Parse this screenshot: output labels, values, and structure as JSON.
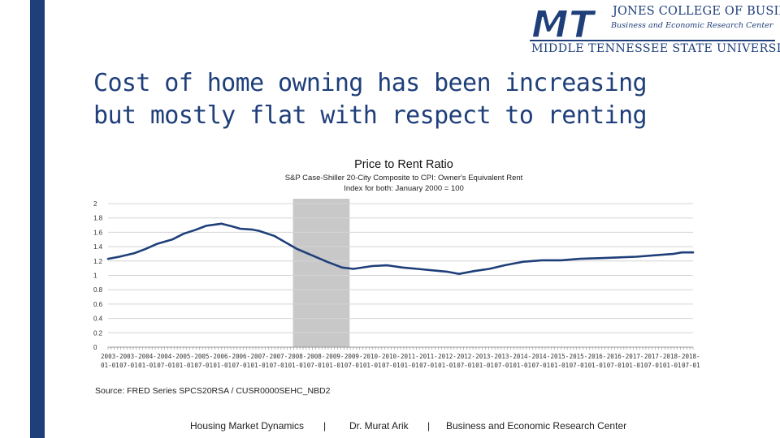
{
  "slide": {
    "title": "Cost of home owning has been increasing\nbut mostly flat with respect to renting",
    "source": "Source: FRED Series SPCS20RSA / CUSR0000SEHC_NBD2",
    "accent_color": "#1f3f7a"
  },
  "logo": {
    "mark_text": "MT",
    "line1": "JONES COLLEGE OF BUSINESS",
    "line2": "Business and Economic Research Center",
    "line3": "MIDDLE TENNESSEE STATE UNIVERSITY"
  },
  "footer": {
    "left": "Housing Market Dynamics",
    "sep1": "|",
    "middle": "Dr. Murat Arik",
    "sep2": "|",
    "right": "Business and Economic Research Center"
  },
  "chart_data": {
    "type": "line",
    "title": "Price to Rent Ratio",
    "subtitle_lines": [
      "S&P Case-Shiller 20-City Composite to CPI: Owner's Equivalent Rent",
      "Index for both: January 2000 = 100"
    ],
    "ylim": [
      0,
      2
    ],
    "yticks": [
      0,
      0.2,
      0.4,
      0.6,
      0.8,
      1,
      1.2,
      1.4,
      1.6,
      1.8,
      2
    ],
    "ytick_labels": [
      "0",
      "0.2",
      "0.4",
      "0.6",
      "0.8",
      "1",
      "1.2",
      "1.4",
      "1.6",
      "1.8",
      "2"
    ],
    "grid": true,
    "line_color": "#1f3f7a",
    "shade_color": "#c8c8c8",
    "x_start": 2003,
    "x_end": 2018.5,
    "recession": [
      2007.9,
      2009.4
    ],
    "x_tick_labels_top": [
      "2003-",
      "2003-",
      "2004-",
      "2004-",
      "2005-",
      "2005-",
      "2006-",
      "2006-",
      "2007-",
      "2007-",
      "2008-",
      "2008-",
      "2009-",
      "2009-",
      "2010-",
      "2010-",
      "2011-",
      "2011-",
      "2012-",
      "2012-",
      "2013-",
      "2013-",
      "2014-",
      "2014-",
      "2015-",
      "2015-",
      "2016-",
      "2016-",
      "2017-",
      "2017-",
      "2018-",
      "2018-"
    ],
    "x_tick_labels_bottom": [
      "01-01",
      "07-01",
      "01-01",
      "07-01",
      "01-01",
      "07-01",
      "01-01",
      "07-01",
      "01-01",
      "07-01",
      "01-01",
      "07-01",
      "01-01",
      "07-01",
      "01-01",
      "07-01",
      "01-01",
      "07-01",
      "01-01",
      "07-01",
      "01-01",
      "07-01",
      "01-01",
      "07-01",
      "01-01",
      "07-01",
      "01-01",
      "07-01",
      "01-01",
      "07-01",
      "01-01",
      "07-01"
    ],
    "series": [
      {
        "name": "Price to Rent Ratio",
        "x": [
          2003.0,
          2003.3,
          2003.7,
          2004.0,
          2004.3,
          2004.7,
          2005.0,
          2005.3,
          2005.6,
          2006.0,
          2006.3,
          2006.5,
          2006.8,
          2007.0,
          2007.4,
          2007.7,
          2008.0,
          2008.4,
          2008.8,
          2009.2,
          2009.5,
          2010.0,
          2010.4,
          2010.8,
          2011.2,
          2011.6,
          2012.0,
          2012.3,
          2012.7,
          2013.1,
          2013.5,
          2014.0,
          2014.5,
          2015.0,
          2015.5,
          2016.0,
          2016.5,
          2017.0,
          2017.5,
          2018.0,
          2018.2,
          2018.5
        ],
        "values": [
          1.23,
          1.26,
          1.31,
          1.37,
          1.44,
          1.5,
          1.58,
          1.63,
          1.69,
          1.72,
          1.68,
          1.65,
          1.64,
          1.62,
          1.55,
          1.46,
          1.37,
          1.28,
          1.19,
          1.11,
          1.09,
          1.13,
          1.14,
          1.11,
          1.09,
          1.07,
          1.05,
          1.02,
          1.06,
          1.09,
          1.14,
          1.19,
          1.21,
          1.21,
          1.23,
          1.24,
          1.25,
          1.26,
          1.28,
          1.3,
          1.32,
          1.32
        ]
      }
    ]
  }
}
